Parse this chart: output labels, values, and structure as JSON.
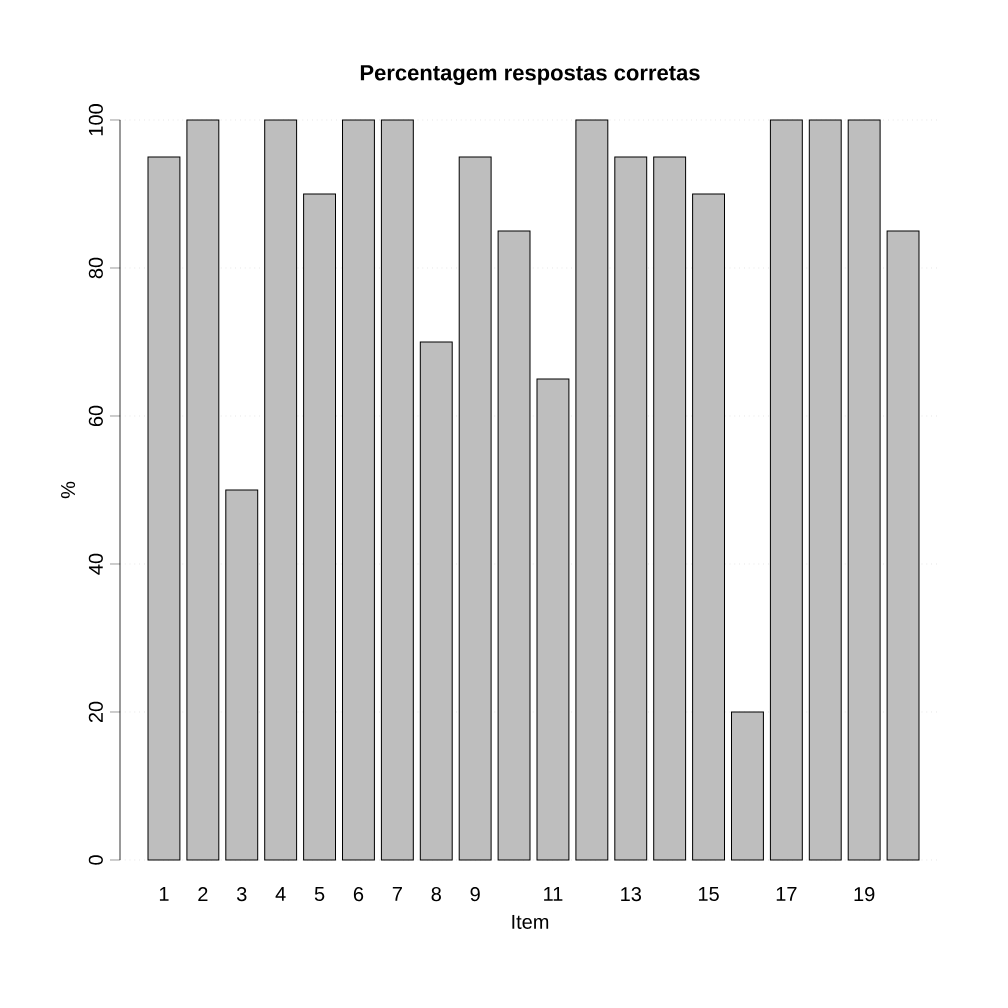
{
  "chart_data": {
    "type": "bar",
    "title": "Percentagem respostas corretas",
    "xlabel": "Item",
    "ylabel": "%",
    "categories": [
      "1",
      "2",
      "3",
      "4",
      "5",
      "6",
      "7",
      "8",
      "9",
      null,
      "11",
      null,
      "13",
      null,
      "15",
      null,
      "17",
      null,
      "19",
      null
    ],
    "values": [
      95,
      100,
      50,
      100,
      90,
      100,
      100,
      70,
      95,
      85,
      65,
      100,
      95,
      95,
      90,
      20,
      100,
      100,
      100,
      85
    ],
    "color": "#bebebe",
    "ylim": [
      0,
      100
    ],
    "yticks": [
      0,
      20,
      40,
      60,
      80,
      100
    ],
    "grid": "y"
  }
}
